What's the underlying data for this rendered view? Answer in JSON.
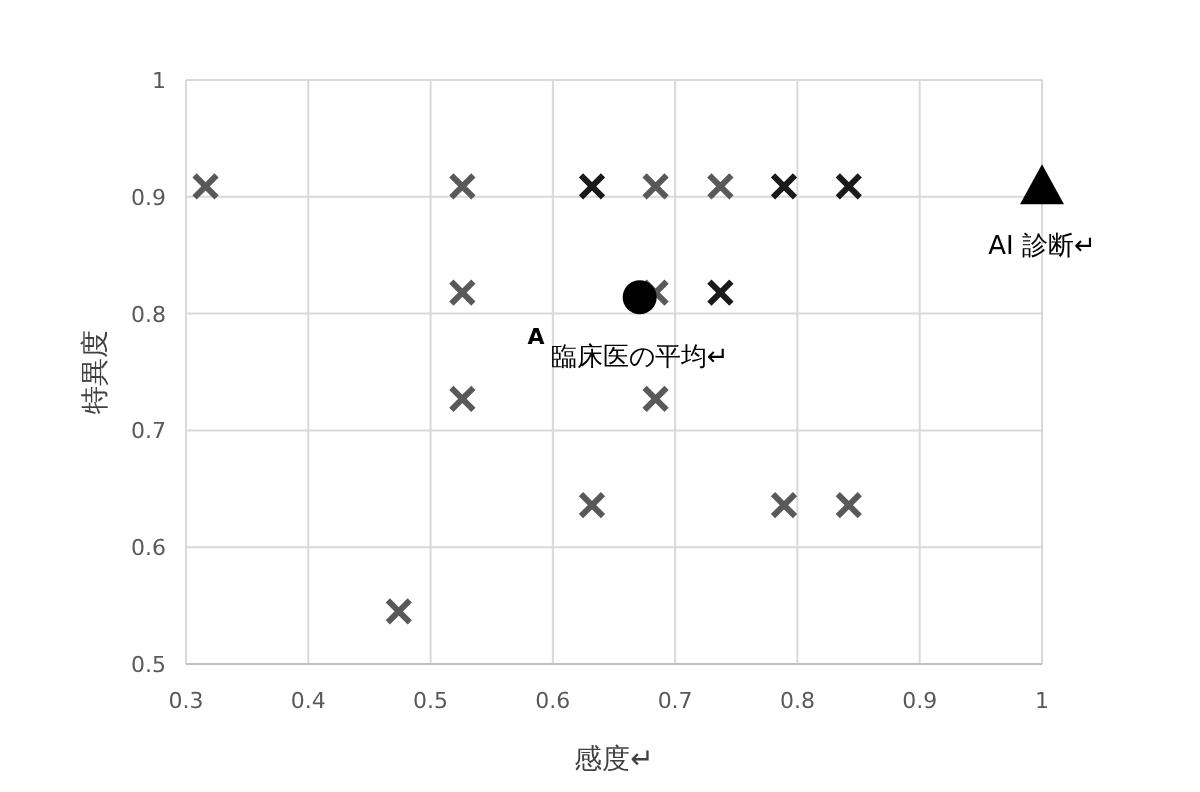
{
  "chart_data": {
    "type": "scatter",
    "xlabel": "感度↵",
    "ylabel": "特異度",
    "xlim": [
      0.3,
      1
    ],
    "ylim": [
      0.5,
      1
    ],
    "xticks": [
      0.3,
      0.4,
      0.5,
      0.6,
      0.7,
      0.8,
      0.9,
      1
    ],
    "yticks": [
      0.5,
      0.6,
      0.7,
      0.8,
      0.9,
      1
    ],
    "grid": true,
    "annotations": [
      "A"
    ],
    "series": [
      {
        "color": "#595959",
        "marker": "cross",
        "x": [
          0.316,
          0.526,
          0.684,
          0.737,
          0.526,
          0.684,
          0.526,
          0.684,
          0.632,
          0.789,
          0.842,
          0.474
        ],
        "values": [
          0.909,
          0.909,
          0.909,
          0.909,
          0.818,
          0.818,
          0.727,
          0.727,
          0.636,
          0.636,
          0.636,
          0.545
        ]
      },
      {
        "color": "#1a1a1a",
        "marker": "cross",
        "x": [
          0.632,
          0.789,
          0.842,
          0.737
        ],
        "values": [
          0.909,
          0.909,
          0.909,
          0.818
        ]
      },
      {
        "name": "臨床医の平均↵",
        "color": "#000000",
        "marker": "circle",
        "x": [
          0.671
        ],
        "values": [
          0.814
        ]
      },
      {
        "name": "AI 診断↵",
        "color": "#000000",
        "marker": "triangle",
        "x": [
          1
        ],
        "values": [
          0.909
        ]
      }
    ]
  }
}
